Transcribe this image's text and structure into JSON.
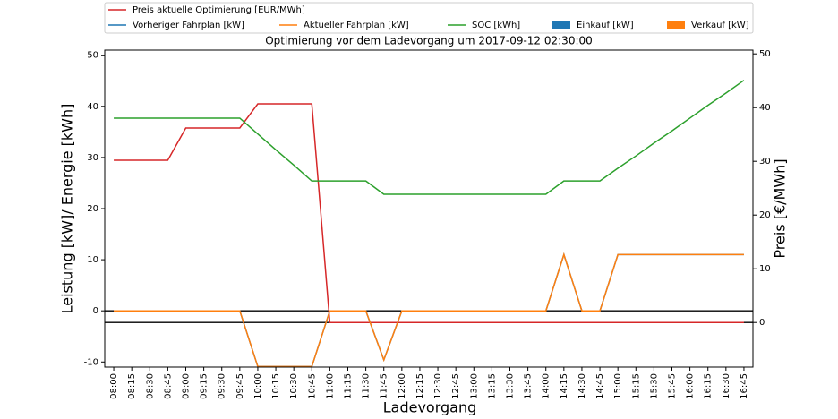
{
  "chart_data": {
    "type": "line",
    "title": "Optimierung vor dem Ladevorgang um 2017-09-12 02:30:00",
    "xlabel": "Ladevorgang",
    "ylabel": "Leistung [kW]/ Energie [kWh]",
    "y2label": "Preis [€/MWh]",
    "categories": [
      "08:00",
      "08:15",
      "08:30",
      "08:45",
      "09:00",
      "09:15",
      "09:30",
      "09:45",
      "10:00",
      "10:15",
      "10:30",
      "10:45",
      "11:00",
      "11:15",
      "11:30",
      "11:45",
      "12:00",
      "12:15",
      "12:30",
      "12:45",
      "13:00",
      "13:15",
      "13:30",
      "13:45",
      "14:00",
      "14:15",
      "14:30",
      "14:45",
      "15:00",
      "15:15",
      "15:30",
      "15:45",
      "16:00",
      "16:15",
      "16:30",
      "16:45"
    ],
    "ylim": [
      -11,
      51
    ],
    "yticks": [
      -10,
      0,
      10,
      20,
      30,
      40,
      50
    ],
    "y2lim": [
      -8.3,
      50.7
    ],
    "y2ticks": [
      0,
      10,
      20,
      30,
      40,
      50
    ],
    "series": [
      {
        "name": "Preis aktuelle Optimierung [EUR/MWh]",
        "color": "#d62728",
        "axis": "y2",
        "type": "line",
        "values": [
          30.2,
          30.2,
          30.2,
          30.2,
          36.2,
          36.2,
          36.2,
          36.2,
          40.7,
          40.7,
          40.7,
          40.7,
          0,
          0,
          0,
          0,
          0,
          0,
          0,
          0,
          0,
          0,
          0,
          0,
          0,
          0,
          0,
          0,
          0,
          0,
          0,
          0,
          0,
          0,
          0,
          0
        ]
      },
      {
        "name": "Vorheriger Fahrplan [kW]",
        "color": "#1f77b4",
        "type": "line",
        "values": [
          0,
          0,
          0,
          0,
          0,
          0,
          0,
          0,
          -10.9,
          -10.9,
          -10.9,
          -10.9,
          0,
          0,
          0,
          -9.6,
          0,
          0,
          0,
          0,
          0,
          0,
          0,
          0,
          0,
          11,
          0,
          0,
          11,
          11,
          11,
          11,
          11,
          11,
          11,
          11
        ]
      },
      {
        "name": "Aktueller Fahrplan [kW]",
        "color": "#ff7f0e",
        "type": "line",
        "values": [
          0,
          0,
          0,
          0,
          0,
          0,
          0,
          0,
          -10.9,
          -10.9,
          -10.9,
          -10.9,
          0,
          0,
          0,
          -9.6,
          0,
          0,
          0,
          0,
          0,
          0,
          0,
          0,
          0,
          11,
          0,
          0,
          11,
          11,
          11,
          11,
          11,
          11,
          11,
          11
        ]
      },
      {
        "name": "SOC [kWh]",
        "color": "#2ca02c",
        "type": "line",
        "values": [
          37.7,
          37.7,
          37.7,
          37.7,
          37.7,
          37.7,
          37.7,
          37.7,
          34.6,
          31.5,
          28.5,
          25.4,
          25.4,
          25.4,
          25.4,
          22.8,
          22.8,
          22.8,
          22.8,
          22.8,
          22.8,
          22.8,
          22.8,
          22.8,
          22.8,
          25.4,
          25.4,
          25.4,
          27.9,
          30.3,
          32.8,
          35.2,
          37.7,
          40.2,
          42.6,
          45.1
        ]
      },
      {
        "name": "Einkauf [kW]",
        "color": "#1f77b4",
        "type": "bar",
        "values": [
          0,
          0,
          0,
          0,
          0,
          0,
          0,
          0,
          0,
          0,
          0,
          0,
          0,
          0,
          0,
          0,
          0,
          0,
          0,
          0,
          0,
          0,
          0,
          0,
          0,
          0,
          0,
          0,
          0,
          0,
          0,
          0,
          0,
          0,
          0,
          0
        ]
      },
      {
        "name": "Verkauf [kW]",
        "color": "#ff7f0e",
        "type": "bar",
        "values": [
          0,
          0,
          0,
          0,
          0,
          0,
          0,
          0,
          0,
          0,
          0,
          0,
          0,
          0,
          0,
          0,
          0,
          0,
          0,
          0,
          0,
          0,
          0,
          0,
          0,
          0,
          0,
          0,
          0,
          0,
          0,
          0,
          0,
          0,
          0,
          0
        ]
      }
    ]
  }
}
